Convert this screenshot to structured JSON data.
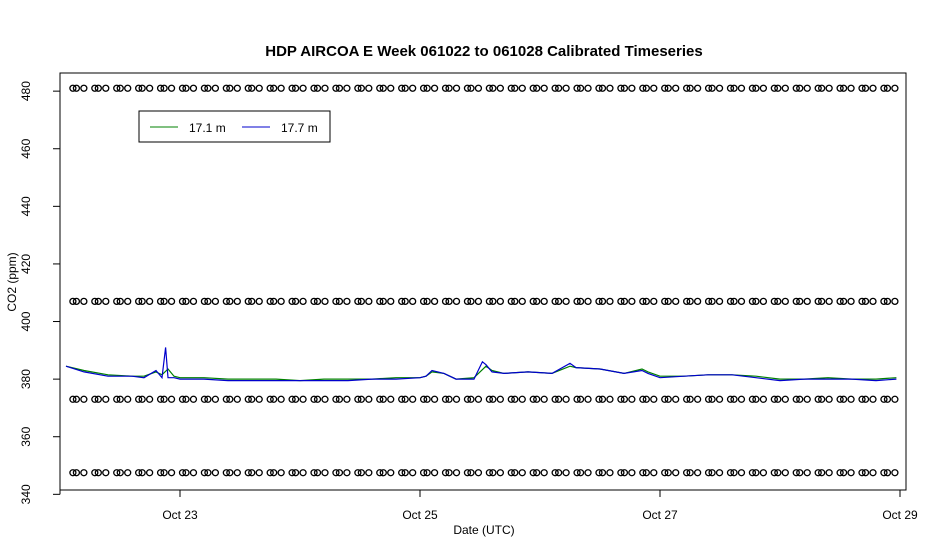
{
  "chart_data": {
    "type": "line",
    "title": "HDP AIRCOA E  Week 061022 to 061028  Calibrated Timeseries",
    "xlabel": "Date (UTC)",
    "ylabel": "CO2 (ppm)",
    "xlim": [
      22.0,
      29.05
    ],
    "ylim": [
      341.5,
      486.3
    ],
    "x_ticks": [
      {
        "value": 23,
        "label": "Oct 23"
      },
      {
        "value": 25,
        "label": "Oct 25"
      },
      {
        "value": 27,
        "label": "Oct 27"
      },
      {
        "value": 29,
        "label": "Oct 29"
      }
    ],
    "y_ticks": [
      340,
      360,
      380,
      400,
      420,
      440,
      460,
      480
    ],
    "x_unit": "day of October 2006 (UTC)",
    "legend": {
      "placement": "top-left",
      "entries": [
        {
          "name": "17.1 m",
          "color": "#008000"
        },
        {
          "name": "17.7 m",
          "color": "#0000cc"
        }
      ]
    },
    "series": [
      {
        "name": "17.1 m",
        "color": "#008000",
        "x": [
          22.05,
          22.2,
          22.4,
          22.6,
          22.7,
          22.8,
          22.85,
          22.9,
          22.95,
          23.0,
          23.2,
          23.4,
          23.6,
          23.8,
          24.0,
          24.2,
          24.4,
          24.6,
          24.8,
          25.0,
          25.05,
          25.1,
          25.2,
          25.3,
          25.45,
          25.55,
          25.6,
          25.7,
          25.9,
          26.1,
          26.25,
          26.3,
          26.5,
          26.7,
          26.85,
          26.9,
          27.0,
          27.2,
          27.4,
          27.6,
          27.8,
          28.0,
          28.2,
          28.4,
          28.6,
          28.8,
          28.97
        ],
        "y": [
          384.5,
          383.0,
          381.5,
          381.0,
          381.0,
          382.5,
          381.5,
          383.5,
          381.0,
          380.5,
          380.5,
          380.0,
          380.0,
          380.0,
          379.5,
          380.0,
          380.0,
          380.0,
          380.5,
          380.5,
          381.0,
          382.5,
          382.0,
          380.0,
          380.5,
          384.5,
          383.0,
          382.0,
          382.5,
          382.0,
          384.5,
          384.0,
          383.5,
          382.0,
          383.5,
          382.5,
          381.0,
          381.0,
          381.5,
          381.5,
          381.0,
          380.0,
          380.0,
          380.5,
          380.0,
          380.0,
          380.5
        ]
      },
      {
        "name": "17.7 m",
        "color": "#0000cc",
        "x": [
          22.05,
          22.2,
          22.4,
          22.6,
          22.7,
          22.8,
          22.85,
          22.88,
          22.9,
          22.95,
          23.0,
          23.2,
          23.4,
          23.6,
          23.8,
          24.0,
          24.2,
          24.4,
          24.6,
          24.8,
          25.0,
          25.05,
          25.1,
          25.2,
          25.3,
          25.45,
          25.52,
          25.55,
          25.6,
          25.7,
          25.9,
          26.1,
          26.25,
          26.3,
          26.5,
          26.7,
          26.85,
          26.9,
          27.0,
          27.2,
          27.4,
          27.6,
          27.8,
          28.0,
          28.2,
          28.4,
          28.6,
          28.8,
          28.97
        ],
        "y": [
          384.5,
          382.5,
          381.0,
          381.0,
          380.5,
          383.0,
          380.5,
          391.0,
          380.5,
          380.5,
          380.0,
          380.0,
          379.5,
          379.5,
          379.5,
          379.5,
          379.5,
          379.5,
          380.0,
          380.0,
          380.5,
          381.0,
          383.0,
          382.0,
          380.0,
          380.0,
          386.0,
          385.0,
          382.5,
          382.0,
          382.5,
          382.0,
          385.5,
          384.0,
          383.5,
          382.0,
          383.0,
          382.0,
          380.5,
          381.0,
          381.5,
          381.5,
          380.5,
          379.5,
          380.0,
          380.0,
          380.0,
          379.5,
          380.0
        ]
      },
      {
        "name": "",
        "kind": "points",
        "marker": "o",
        "x_start": 22.12,
        "x_end": 28.97,
        "y": 481.0
      },
      {
        "name": "",
        "kind": "points",
        "marker": "o",
        "x_start": 22.12,
        "x_end": 28.97,
        "y": 407.0
      },
      {
        "name": "",
        "kind": "points",
        "marker": "o",
        "x_start": 22.12,
        "x_end": 28.97,
        "y": 373.0
      },
      {
        "name": "",
        "kind": "points",
        "marker": "o",
        "x_start": 22.12,
        "x_end": 28.97,
        "y": 347.5
      }
    ]
  }
}
